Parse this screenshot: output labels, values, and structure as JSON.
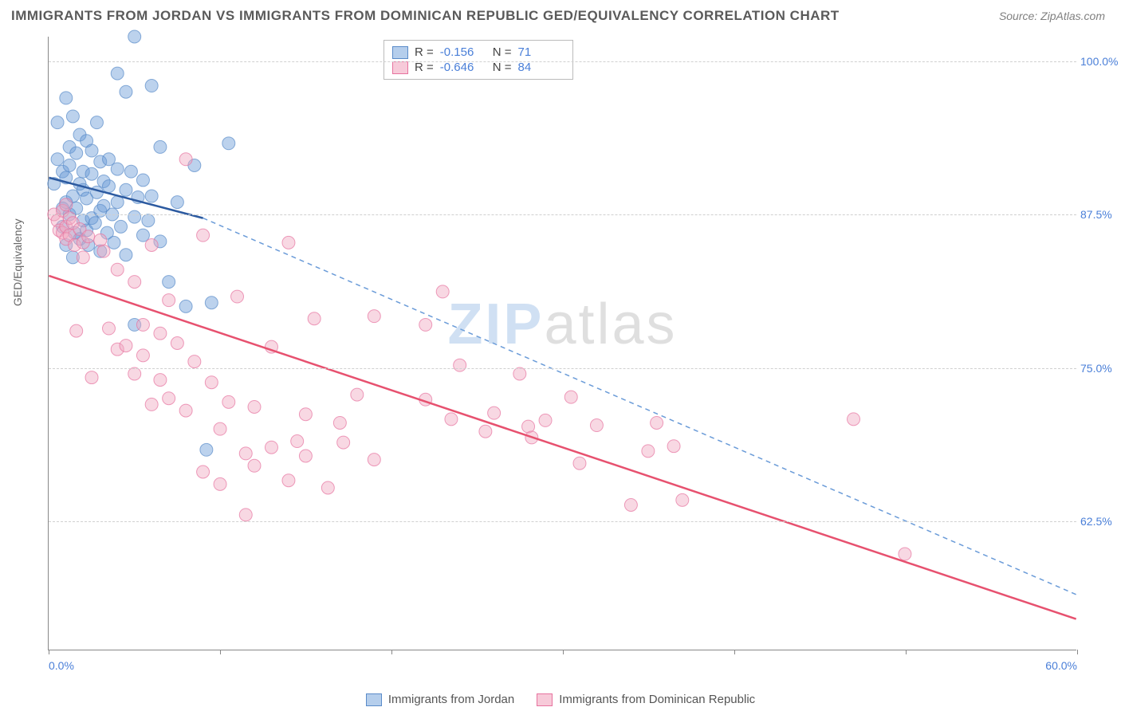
{
  "header": {
    "title": "IMMIGRANTS FROM JORDAN VS IMMIGRANTS FROM DOMINICAN REPUBLIC GED/EQUIVALENCY CORRELATION CHART",
    "source": "Source: ZipAtlas.com"
  },
  "chart": {
    "type": "scatter",
    "y_axis_label": "GED/Equivalency",
    "xlim": [
      0,
      60
    ],
    "ylim": [
      52,
      102
    ],
    "x_ticks": [
      0,
      10,
      20,
      30,
      40,
      50,
      60
    ],
    "x_tick_labels": {
      "0": "0.0%",
      "60": "60.0%"
    },
    "y_gridlines": [
      62.5,
      75.0,
      87.5,
      100.0
    ],
    "y_tick_labels": [
      "62.5%",
      "75.0%",
      "87.5%",
      "100.0%"
    ],
    "background_color": "#ffffff",
    "grid_color": "#d0d0d0",
    "axis_color": "#888888",
    "tick_label_color": "#4a7fd8",
    "marker_radius": 8,
    "marker_opacity": 0.45,
    "series": [
      {
        "name": "Immigrants from Jordan",
        "color": "#6a9bd8",
        "stroke": "#5a8bc9",
        "R": "-0.156",
        "N": "71",
        "trend": {
          "solid": {
            "x1": 0,
            "y1": 90.5,
            "x2": 9,
            "y2": 87.2
          },
          "dashed": {
            "x1": 9,
            "y1": 87.2,
            "x2": 60,
            "y2": 56.5
          },
          "stroke_solid": "#2c5aa0",
          "stroke_dashed": "#6a9bd8",
          "width": 2.5
        },
        "points": [
          [
            0.3,
            90
          ],
          [
            0.5,
            92
          ],
          [
            0.5,
            95
          ],
          [
            0.8,
            88
          ],
          [
            0.8,
            91
          ],
          [
            0.8,
            86.5
          ],
          [
            1.0,
            97
          ],
          [
            1.0,
            88.5
          ],
          [
            1.0,
            90.5
          ],
          [
            1.0,
            85
          ],
          [
            1.2,
            93
          ],
          [
            1.2,
            87.5
          ],
          [
            1.2,
            91.5
          ],
          [
            1.4,
            89
          ],
          [
            1.4,
            95.5
          ],
          [
            1.4,
            84
          ],
          [
            1.5,
            86
          ],
          [
            1.6,
            92.5
          ],
          [
            1.6,
            88
          ],
          [
            1.8,
            90
          ],
          [
            1.8,
            85.5
          ],
          [
            1.8,
            94
          ],
          [
            2.0,
            87
          ],
          [
            2.0,
            91
          ],
          [
            2.0,
            89.5
          ],
          [
            2.2,
            86.2
          ],
          [
            2.2,
            93.5
          ],
          [
            2.2,
            88.8
          ],
          [
            2.3,
            85
          ],
          [
            2.5,
            90.8
          ],
          [
            2.5,
            87.2
          ],
          [
            2.5,
            92.7
          ],
          [
            2.7,
            86.8
          ],
          [
            2.8,
            89.3
          ],
          [
            2.8,
            95
          ],
          [
            3.0,
            91.8
          ],
          [
            3.0,
            84.5
          ],
          [
            3.0,
            87.8
          ],
          [
            3.2,
            90.2
          ],
          [
            3.2,
            88.2
          ],
          [
            3.4,
            86
          ],
          [
            3.5,
            92
          ],
          [
            3.5,
            89.8
          ],
          [
            3.7,
            87.5
          ],
          [
            3.8,
            85.2
          ],
          [
            4.0,
            91.2
          ],
          [
            4.0,
            88.5
          ],
          [
            4.0,
            99
          ],
          [
            4.2,
            86.5
          ],
          [
            4.5,
            97.5
          ],
          [
            4.5,
            89.5
          ],
          [
            4.5,
            84.2
          ],
          [
            4.8,
            91
          ],
          [
            5.0,
            102
          ],
          [
            5.0,
            87.3
          ],
          [
            5.0,
            78.5
          ],
          [
            5.2,
            88.9
          ],
          [
            5.5,
            85.8
          ],
          [
            5.5,
            90.3
          ],
          [
            5.8,
            87
          ],
          [
            6.0,
            98
          ],
          [
            6.0,
            89
          ],
          [
            6.5,
            93
          ],
          [
            6.5,
            85.3
          ],
          [
            7.0,
            82
          ],
          [
            7.5,
            88.5
          ],
          [
            8.0,
            80
          ],
          [
            8.5,
            91.5
          ],
          [
            9.2,
            68.3
          ],
          [
            9.5,
            80.3
          ],
          [
            10.5,
            93.3
          ]
        ]
      },
      {
        "name": "Immigrants from Dominican Republic",
        "color": "#f0a8c0",
        "stroke": "#e7739f",
        "R": "-0.646",
        "N": "84",
        "trend": {
          "solid": {
            "x1": 0,
            "y1": 82.5,
            "x2": 60,
            "y2": 54.5
          },
          "stroke_solid": "#e7516f",
          "width": 2.5
        },
        "points": [
          [
            0.3,
            87.5
          ],
          [
            0.5,
            87
          ],
          [
            0.6,
            86.2
          ],
          [
            0.8,
            87.8
          ],
          [
            0.8,
            86
          ],
          [
            1.0,
            88.3
          ],
          [
            1.0,
            86.5
          ],
          [
            1.0,
            85.5
          ],
          [
            1.2,
            87.2
          ],
          [
            1.2,
            85.8
          ],
          [
            1.4,
            86.8
          ],
          [
            1.5,
            85
          ],
          [
            1.6,
            78
          ],
          [
            1.8,
            86.3
          ],
          [
            2.0,
            85.2
          ],
          [
            2.0,
            84
          ],
          [
            2.3,
            85.7
          ],
          [
            2.5,
            74.2
          ],
          [
            3.0,
            85.4
          ],
          [
            3.2,
            84.5
          ],
          [
            3.5,
            78.2
          ],
          [
            4.0,
            76.5
          ],
          [
            4.0,
            83
          ],
          [
            4.5,
            76.8
          ],
          [
            5.0,
            82
          ],
          [
            5.0,
            74.5
          ],
          [
            5.5,
            78.5
          ],
          [
            5.5,
            76
          ],
          [
            6.0,
            85
          ],
          [
            6.0,
            72
          ],
          [
            6.5,
            77.8
          ],
          [
            6.5,
            74
          ],
          [
            7.0,
            80.5
          ],
          [
            7.0,
            72.5
          ],
          [
            7.5,
            77
          ],
          [
            8.0,
            92
          ],
          [
            8.0,
            71.5
          ],
          [
            8.5,
            75.5
          ],
          [
            9.0,
            66.5
          ],
          [
            9.0,
            85.8
          ],
          [
            9.5,
            73.8
          ],
          [
            10.0,
            65.5
          ],
          [
            10.0,
            70
          ],
          [
            10.5,
            72.2
          ],
          [
            11.0,
            80.8
          ],
          [
            11.5,
            68
          ],
          [
            11.5,
            63
          ],
          [
            12.0,
            71.8
          ],
          [
            12.0,
            67
          ],
          [
            13.0,
            76.7
          ],
          [
            13.0,
            68.5
          ],
          [
            14.0,
            85.2
          ],
          [
            14.0,
            65.8
          ],
          [
            14.5,
            69
          ],
          [
            15.0,
            71.2
          ],
          [
            15.0,
            67.8
          ],
          [
            15.5,
            79
          ],
          [
            16.3,
            65.2
          ],
          [
            17.0,
            70.5
          ],
          [
            17.2,
            68.9
          ],
          [
            18.0,
            72.8
          ],
          [
            19.0,
            79.2
          ],
          [
            19.0,
            67.5
          ],
          [
            22.0,
            78.5
          ],
          [
            22.0,
            72.4
          ],
          [
            23.0,
            81.2
          ],
          [
            23.5,
            70.8
          ],
          [
            24.0,
            75.2
          ],
          [
            25.5,
            69.8
          ],
          [
            26.0,
            71.3
          ],
          [
            27.5,
            74.5
          ],
          [
            28.0,
            70.2
          ],
          [
            28.2,
            69.3
          ],
          [
            29.0,
            70.7
          ],
          [
            30.5,
            72.6
          ],
          [
            31.0,
            67.2
          ],
          [
            32.0,
            70.3
          ],
          [
            34.0,
            63.8
          ],
          [
            35.0,
            68.2
          ],
          [
            35.5,
            70.5
          ],
          [
            36.5,
            68.6
          ],
          [
            37.0,
            64.2
          ],
          [
            47.0,
            70.8
          ],
          [
            50.0,
            59.8
          ]
        ]
      }
    ]
  },
  "watermark": {
    "part1": "ZIP",
    "part2": "atlas"
  },
  "legend": {
    "series1": "Immigrants from Jordan",
    "series2": "Immigrants from Dominican Republic"
  },
  "stats_labels": {
    "R": "R =",
    "N": "N ="
  }
}
